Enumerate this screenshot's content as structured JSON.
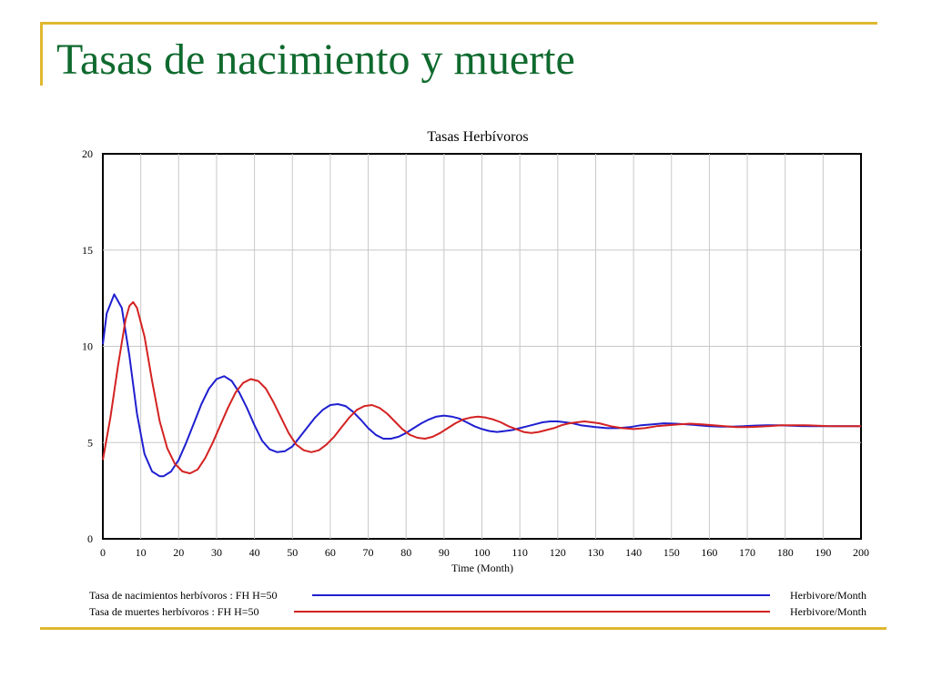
{
  "slide": {
    "title": "Tasas de nacimiento y muerte",
    "title_color": "#0f6a2e",
    "accent_color": "#e0b830"
  },
  "chart_data": {
    "type": "line",
    "title": "Tasas Herbívoros",
    "xlabel": "Time (Month)",
    "ylabel": "",
    "xlim": [
      0,
      200
    ],
    "ylim": [
      0,
      20
    ],
    "x_ticks": [
      0,
      10,
      20,
      30,
      40,
      50,
      60,
      70,
      80,
      90,
      100,
      110,
      120,
      130,
      140,
      150,
      160,
      170,
      180,
      190,
      200
    ],
    "y_ticks": [
      0,
      5,
      10,
      15,
      20
    ],
    "grid": true,
    "legend_position": "bottom",
    "series": [
      {
        "name": "Tasa de nacimientos herbívoros : FH H=50",
        "unit": "Herbivore/Month",
        "color": "#1f1fd0",
        "x": [
          0,
          1,
          3,
          5,
          7,
          9,
          11,
          13,
          15,
          16,
          18,
          20,
          22,
          24,
          26,
          28,
          30,
          32,
          34,
          36,
          38,
          40,
          42,
          44,
          46,
          48,
          50,
          52,
          54,
          56,
          58,
          60,
          62,
          64,
          66,
          68,
          70,
          72,
          74,
          76,
          78,
          80,
          82,
          84,
          86,
          88,
          90,
          92,
          94,
          96,
          98,
          100,
          102,
          104,
          106,
          108,
          110,
          112,
          114,
          116,
          118,
          120,
          122,
          124,
          126,
          128,
          130,
          133,
          136,
          139,
          142,
          145,
          148,
          151,
          154,
          157,
          160,
          163,
          166,
          169,
          172,
          175,
          178,
          181,
          184,
          187,
          190,
          195,
          200
        ],
        "values": [
          10.1,
          11.7,
          12.7,
          12.0,
          9.5,
          6.5,
          4.4,
          3.5,
          3.25,
          3.25,
          3.5,
          4.1,
          5.0,
          6.0,
          7.0,
          7.8,
          8.3,
          8.45,
          8.2,
          7.6,
          6.8,
          5.9,
          5.1,
          4.65,
          4.5,
          4.55,
          4.8,
          5.3,
          5.8,
          6.3,
          6.7,
          6.95,
          7.0,
          6.9,
          6.6,
          6.2,
          5.75,
          5.4,
          5.2,
          5.2,
          5.3,
          5.5,
          5.75,
          6.0,
          6.2,
          6.35,
          6.4,
          6.35,
          6.25,
          6.05,
          5.85,
          5.7,
          5.6,
          5.55,
          5.6,
          5.65,
          5.75,
          5.85,
          5.95,
          6.05,
          6.1,
          6.1,
          6.05,
          6.0,
          5.9,
          5.85,
          5.8,
          5.75,
          5.75,
          5.8,
          5.9,
          5.95,
          6.0,
          5.98,
          5.95,
          5.9,
          5.85,
          5.83,
          5.83,
          5.85,
          5.88,
          5.9,
          5.9,
          5.88,
          5.86,
          5.85,
          5.85,
          5.85,
          5.85
        ]
      },
      {
        "name": "Tasa de muertes herbívoros : FH H=50",
        "unit": "Herbivore/Month",
        "color": "#d42222",
        "x": [
          0,
          2,
          4,
          6,
          7,
          8,
          9,
          11,
          13,
          15,
          17,
          19,
          21,
          23,
          25,
          27,
          29,
          31,
          33,
          35,
          37,
          39,
          41,
          43,
          45,
          47,
          49,
          51,
          53,
          55,
          57,
          59,
          61,
          63,
          65,
          67,
          69,
          71,
          73,
          75,
          77,
          79,
          81,
          83,
          85,
          87,
          89,
          91,
          93,
          95,
          97,
          99,
          101,
          103,
          105,
          107,
          109,
          111,
          113,
          115,
          117,
          119,
          121,
          123,
          125,
          127,
          129,
          131,
          134,
          137,
          140,
          143,
          146,
          149,
          152,
          155,
          158,
          161,
          164,
          167,
          170,
          173,
          176,
          179,
          182,
          185,
          188,
          191,
          195,
          200
        ],
        "values": [
          4.1,
          6.3,
          9.0,
          11.4,
          12.1,
          12.3,
          12.0,
          10.5,
          8.2,
          6.1,
          4.7,
          3.9,
          3.5,
          3.4,
          3.6,
          4.2,
          5.0,
          5.9,
          6.8,
          7.6,
          8.1,
          8.3,
          8.2,
          7.8,
          7.1,
          6.3,
          5.5,
          4.9,
          4.6,
          4.5,
          4.6,
          4.9,
          5.3,
          5.8,
          6.3,
          6.7,
          6.9,
          6.95,
          6.8,
          6.5,
          6.1,
          5.7,
          5.4,
          5.25,
          5.2,
          5.3,
          5.5,
          5.75,
          6.0,
          6.2,
          6.3,
          6.35,
          6.3,
          6.2,
          6.05,
          5.85,
          5.7,
          5.55,
          5.5,
          5.55,
          5.65,
          5.75,
          5.9,
          6.0,
          6.05,
          6.1,
          6.05,
          6.0,
          5.85,
          5.75,
          5.7,
          5.75,
          5.85,
          5.9,
          5.95,
          5.98,
          5.95,
          5.9,
          5.85,
          5.8,
          5.8,
          5.83,
          5.86,
          5.9,
          5.9,
          5.9,
          5.88,
          5.86,
          5.85,
          5.85
        ]
      }
    ]
  }
}
